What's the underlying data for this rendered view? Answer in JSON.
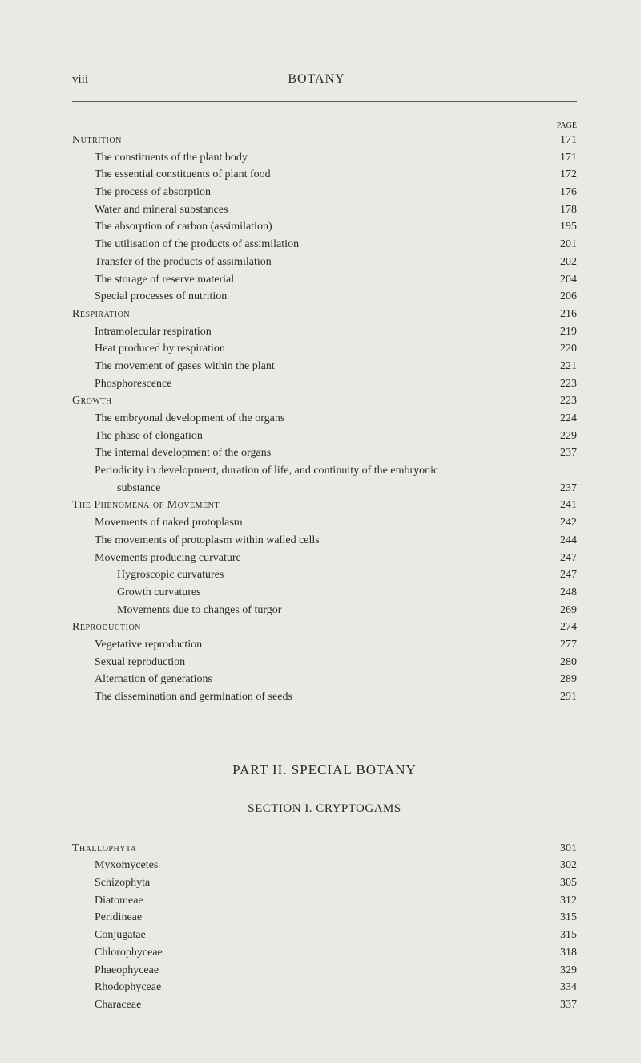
{
  "header": {
    "page_number": "viii",
    "book_title": "BOTANY",
    "page_col_label": "PAGE"
  },
  "part": {
    "title": "PART II.  SPECIAL BOTANY",
    "section": "SECTION I.  CRYPTOGAMS"
  },
  "toc_main": [
    {
      "label": "Nutrition",
      "page": "171",
      "indent": 0
    },
    {
      "label": "The constituents of the plant body",
      "page": "171",
      "indent": 1
    },
    {
      "label": "The essential constituents of plant food",
      "page": "172",
      "indent": 1
    },
    {
      "label": "The process of absorption",
      "page": "176",
      "indent": 1
    },
    {
      "label": "Water and mineral substances",
      "page": "178",
      "indent": 1
    },
    {
      "label": "The absorption of carbon (assimilation)",
      "page": "195",
      "indent": 1
    },
    {
      "label": "The utilisation of the products of assimilation",
      "page": "201",
      "indent": 1
    },
    {
      "label": "Transfer of the products of assimilation",
      "page": "202",
      "indent": 1
    },
    {
      "label": "The storage of reserve material",
      "page": "204",
      "indent": 1
    },
    {
      "label": "Special processes of nutrition",
      "page": "206",
      "indent": 1
    },
    {
      "label": "Respiration",
      "page": "216",
      "indent": 0
    },
    {
      "label": "Intramolecular respiration",
      "page": "219",
      "indent": 1
    },
    {
      "label": "Heat produced by respiration",
      "page": "220",
      "indent": 1
    },
    {
      "label": "The movement of gases within the plant",
      "page": "221",
      "indent": 1
    },
    {
      "label": "Phosphorescence",
      "page": "223",
      "indent": 1
    },
    {
      "label": "Growth",
      "page": "223",
      "indent": 0
    },
    {
      "label": "The embryonal development of the organs",
      "page": "224",
      "indent": 1
    },
    {
      "label": "The phase of elongation",
      "page": "229",
      "indent": 1
    },
    {
      "label": "The internal development of the organs",
      "page": "237",
      "indent": 1
    },
    {
      "label": "Periodicity in development, duration of life, and continuity of the embryonic",
      "page": "",
      "indent": 1
    },
    {
      "label": "substance",
      "page": "237",
      "indent": 2
    },
    {
      "label": "The Phenomena of Movement",
      "page": "241",
      "indent": 0
    },
    {
      "label": "Movements of naked protoplasm",
      "page": "242",
      "indent": 1
    },
    {
      "label": "The movements of protoplasm within walled cells",
      "page": "244",
      "indent": 1
    },
    {
      "label": "Movements producing curvature",
      "page": "247",
      "indent": 1
    },
    {
      "label": "Hygroscopic curvatures",
      "page": "247",
      "indent": 2
    },
    {
      "label": "Growth curvatures",
      "page": "248",
      "indent": 2
    },
    {
      "label": "Movements due to changes of turgor",
      "page": "269",
      "indent": 2
    },
    {
      "label": "Reproduction",
      "page": "274",
      "indent": 0
    },
    {
      "label": "Vegetative reproduction",
      "page": "277",
      "indent": 1
    },
    {
      "label": "Sexual reproduction",
      "page": "280",
      "indent": 1
    },
    {
      "label": "Alternation of generations",
      "page": "289",
      "indent": 1
    },
    {
      "label": "The dissemination and germination of seeds",
      "page": "291",
      "indent": 1
    }
  ],
  "toc_secondary": [
    {
      "label": "Thallophyta",
      "page": "301",
      "indent": 0
    },
    {
      "label": "Myxomycetes",
      "page": "302",
      "indent": 1
    },
    {
      "label": "Schizophyta",
      "page": "305",
      "indent": 1
    },
    {
      "label": "Diatomeae",
      "page": "312",
      "indent": 1
    },
    {
      "label": "Peridineae",
      "page": "315",
      "indent": 1
    },
    {
      "label": "Conjugatae",
      "page": "315",
      "indent": 1
    },
    {
      "label": "Chlorophyceae",
      "page": "318",
      "indent": 1
    },
    {
      "label": "Phaeophyceae",
      "page": "329",
      "indent": 1
    },
    {
      "label": "Rhodophyceae",
      "page": "334",
      "indent": 1
    },
    {
      "label": "Characeae",
      "page": "337",
      "indent": 1
    }
  ]
}
